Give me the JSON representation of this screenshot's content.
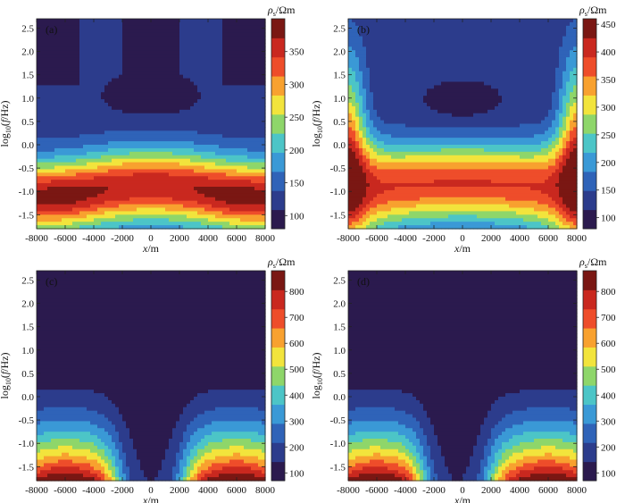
{
  "colormap": [
    "#2b1a4e",
    "#2c3c8c",
    "#2f63b8",
    "#3a99d6",
    "#4cc5c7",
    "#8ed66a",
    "#f2e43c",
    "#f8a12f",
    "#ee4d2a",
    "#c9281f",
    "#7a1713"
  ],
  "chart_data": [
    {
      "type": "heatmap",
      "panel_label": "(a)",
      "xlabel_main": "x",
      "xlabel_unit": "/m",
      "ylabel_main": "log",
      "ylabel_sub": "10",
      "ylabel_open": "(",
      "ylabel_var": "f",
      "ylabel_unit": "/Hz)",
      "cb_title_main": "ρ",
      "cb_title_sub": "s",
      "cb_title_unit": "/Ωm",
      "xlim": [
        -8000,
        8000
      ],
      "ylim": [
        -1.8,
        2.7
      ],
      "x_ticks": [
        -8000,
        -6000,
        -4000,
        -2000,
        0,
        2000,
        4000,
        6000,
        8000
      ],
      "y_ticks": [
        -1.5,
        -1.0,
        -0.5,
        0.0,
        0.5,
        1.0,
        1.5,
        2.0,
        2.5
      ],
      "x_tick_labels": [
        "-8000",
        "-6000",
        "-4000",
        "-2000",
        "0",
        "2000",
        "4000",
        "6000",
        "8000"
      ],
      "y_tick_labels": [
        "-1.5",
        "-1.0",
        "-0.5",
        "0.0",
        "0.5",
        "1.0",
        "1.5",
        "2.0",
        "2.5"
      ],
      "colorbar_range": [
        80,
        400
      ],
      "colorbar_ticks": [
        100,
        150,
        200,
        250,
        300,
        350
      ],
      "colorbar_tick_labels": [
        "100",
        "150",
        "200",
        "250",
        "300",
        "350"
      ],
      "model": "a"
    },
    {
      "type": "heatmap",
      "panel_label": "(b)",
      "xlabel_main": "x",
      "xlabel_unit": "/m",
      "ylabel_main": "log",
      "ylabel_sub": "10",
      "ylabel_open": "(",
      "ylabel_var": "f",
      "ylabel_unit": "/Hz)",
      "cb_title_main": "ρ",
      "cb_title_sub": "s",
      "cb_title_unit": "/Ωm",
      "xlim": [
        -8000,
        8000
      ],
      "ylim": [
        -1.8,
        2.7
      ],
      "x_ticks": [
        -8000,
        -6000,
        -4000,
        -2000,
        0,
        2000,
        4000,
        6000,
        8000
      ],
      "y_ticks": [
        -1.5,
        -1.0,
        -0.5,
        0.0,
        0.5,
        1.0,
        1.5,
        2.0,
        2.5
      ],
      "x_tick_labels": [
        "-8000",
        "-6000",
        "-4000",
        "-2000",
        "0",
        "2000",
        "4000",
        "6000",
        "8000"
      ],
      "y_tick_labels": [
        "-1.5",
        "-1.0",
        "-0.5",
        "0.0",
        "0.5",
        "1.0",
        "1.5",
        "2.0",
        "2.5"
      ],
      "colorbar_range": [
        80,
        460
      ],
      "colorbar_ticks": [
        100,
        150,
        200,
        250,
        300,
        350,
        400,
        450
      ],
      "colorbar_tick_labels": [
        "100",
        "150",
        "200",
        "250",
        "300",
        "350",
        "400",
        "450"
      ],
      "model": "b"
    },
    {
      "type": "heatmap",
      "panel_label": "(c)",
      "xlabel_main": "x",
      "xlabel_unit": "/m",
      "ylabel_main": "log",
      "ylabel_sub": "10",
      "ylabel_open": "(",
      "ylabel_var": "f",
      "ylabel_unit": "/Hz)",
      "cb_title_main": "ρ",
      "cb_title_sub": "s",
      "cb_title_unit": "/Ωm",
      "xlim": [
        -8000,
        8000
      ],
      "ylim": [
        -1.8,
        2.7
      ],
      "x_ticks": [
        -8000,
        -6000,
        -4000,
        -2000,
        0,
        2000,
        4000,
        6000,
        8000
      ],
      "y_ticks": [
        -1.5,
        -1.0,
        -0.5,
        0.0,
        0.5,
        1.0,
        1.5,
        2.0,
        2.5
      ],
      "x_tick_labels": [
        "-8000",
        "-6000",
        "-4000",
        "-2000",
        "0",
        "2000",
        "4000",
        "6000",
        "8000"
      ],
      "y_tick_labels": [
        "-1.5",
        "-1.0",
        "-0.5",
        "0.0",
        "0.5",
        "1.0",
        "1.5",
        "2.0",
        "2.5"
      ],
      "colorbar_range": [
        70,
        880
      ],
      "colorbar_ticks": [
        100,
        200,
        300,
        400,
        500,
        600,
        700,
        800
      ],
      "colorbar_tick_labels": [
        "100",
        "200",
        "300",
        "400",
        "500",
        "600",
        "700",
        "800"
      ],
      "model": "c"
    },
    {
      "type": "heatmap",
      "panel_label": "(d)",
      "xlabel_main": "x",
      "xlabel_unit": "/m",
      "ylabel_main": "log",
      "ylabel_sub": "10",
      "ylabel_open": "(",
      "ylabel_var": "f",
      "ylabel_unit": "/Hz)",
      "cb_title_main": "ρ",
      "cb_title_sub": "s",
      "cb_title_unit": "/Ωm",
      "xlim": [
        -8000,
        8000
      ],
      "ylim": [
        -1.8,
        2.7
      ],
      "x_ticks": [
        -8000,
        -6000,
        -4000,
        -2000,
        0,
        2000,
        4000,
        6000,
        8000
      ],
      "y_ticks": [
        -1.5,
        -1.0,
        -0.5,
        0.0,
        0.5,
        1.0,
        1.5,
        2.0,
        2.5
      ],
      "x_tick_labels": [
        "-8000",
        "-6000",
        "-4000",
        "-2000",
        "0",
        "2000",
        "4000",
        "6000",
        "8000"
      ],
      "y_tick_labels": [
        "-1.5",
        "-1.0",
        "-0.5",
        "0.0",
        "0.5",
        "1.0",
        "1.5",
        "2.0",
        "2.5"
      ],
      "colorbar_range": [
        70,
        880
      ],
      "colorbar_ticks": [
        100,
        200,
        300,
        400,
        500,
        600,
        700,
        800
      ],
      "colorbar_tick_labels": [
        "100",
        "200",
        "300",
        "400",
        "500",
        "600",
        "700",
        "800"
      ],
      "model": "d"
    }
  ]
}
